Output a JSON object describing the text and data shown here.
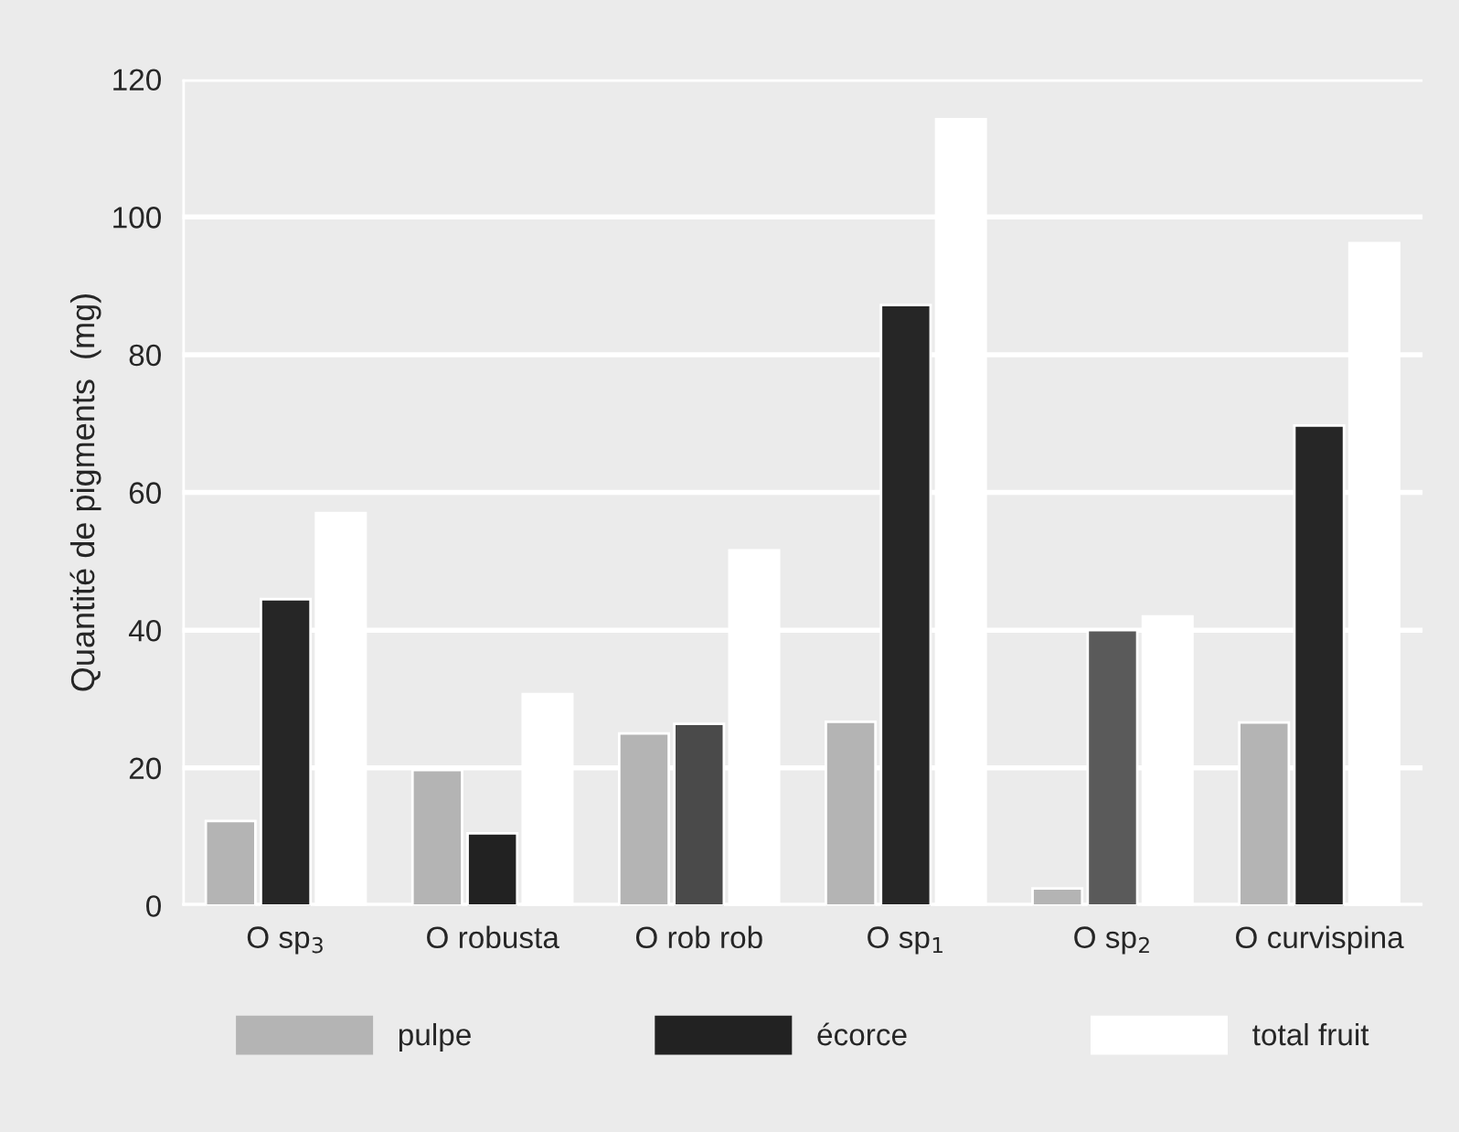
{
  "chart_data": {
    "type": "bar",
    "ylabel": "Quantité de pigments  (mg)",
    "categories": [
      "O sp$_{3}$",
      "O robusta",
      "O rob rob",
      "O sp$_{1}$",
      "O sp$_{2}$",
      "O curvispina"
    ],
    "series": [
      {
        "name": "pulpe",
        "color": "#b4b4b4",
        "values": [
          12.3,
          19.7,
          25,
          26.7,
          2.5,
          26.6
        ]
      },
      {
        "name": "écorce",
        "color": "#222222",
        "colors": [
          "#262626",
          "#222222",
          "#4a4a4a",
          "#262626",
          "#5a5a5a",
          "#262626"
        ],
        "values": [
          44.5,
          10.5,
          26.4,
          87.2,
          40,
          69.7
        ]
      },
      {
        "name": "total fruit",
        "color": "#ffffff",
        "values": [
          57,
          30.7,
          51.6,
          114.2,
          42,
          96.2
        ]
      }
    ],
    "ylim": [
      0,
      120
    ],
    "yticks": [
      0,
      20,
      40,
      60,
      80,
      100,
      120
    ],
    "grid": "y",
    "legend": "bottom"
  }
}
